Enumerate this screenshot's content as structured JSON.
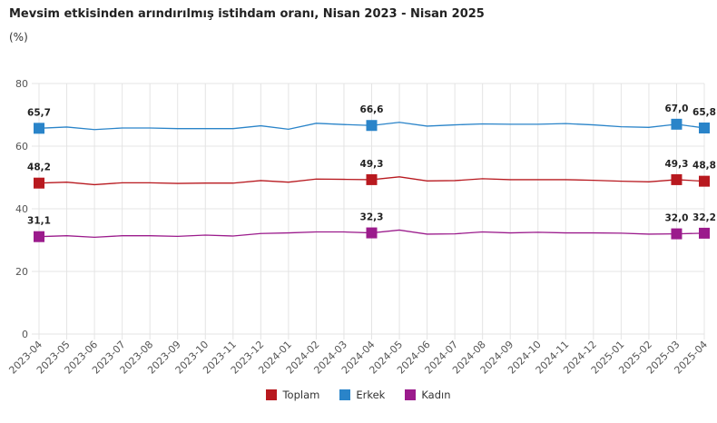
{
  "chart_data": {
    "type": "line",
    "title": "Mevsim etkisinden arındırılmış istihdam oranı, Nisan 2023 - Nisan 2025",
    "subtitle": "(%)",
    "ylim": [
      0,
      80
    ],
    "yticks": [
      0,
      20,
      40,
      60,
      80
    ],
    "grid": true,
    "legend_position": "bottom",
    "categories": [
      "2023-04",
      "2023-05",
      "2023-06",
      "2023-07",
      "2023-08",
      "2023-09",
      "2023-10",
      "2023-11",
      "2023-12",
      "2024-01",
      "2024-02",
      "2024-03",
      "2024-04",
      "2024-05",
      "2024-06",
      "2024-07",
      "2024-08",
      "2024-09",
      "2024-10",
      "2024-11",
      "2024-12",
      "2025-01",
      "2025-02",
      "2025-03",
      "2025-04"
    ],
    "labeled_points": [
      0,
      12,
      23,
      24
    ],
    "series": [
      {
        "name": "Toplam",
        "color": "#b8191f",
        "values": [
          48.2,
          48.5,
          47.7,
          48.3,
          48.3,
          48.1,
          48.2,
          48.2,
          49.0,
          48.5,
          49.5,
          49.4,
          49.3,
          50.2,
          48.9,
          49.0,
          49.6,
          49.3,
          49.3,
          49.3,
          49.1,
          48.8,
          48.6,
          49.3,
          48.8
        ],
        "labels": [
          "48,2",
          "49,3",
          "49,3",
          "48,8"
        ]
      },
      {
        "name": "Erkek",
        "color": "#2a84c9",
        "values": [
          65.7,
          66.1,
          65.3,
          65.8,
          65.8,
          65.6,
          65.6,
          65.6,
          66.5,
          65.4,
          67.3,
          66.9,
          66.6,
          67.6,
          66.4,
          66.8,
          67.1,
          67.0,
          67.0,
          67.2,
          66.8,
          66.2,
          66.0,
          67.0,
          65.8
        ],
        "labels": [
          "65,7",
          "66,6",
          "67,0",
          "65,8"
        ]
      },
      {
        "name": "Kadın",
        "color": "#9b1b8c",
        "values": [
          31.1,
          31.4,
          30.9,
          31.4,
          31.4,
          31.2,
          31.6,
          31.3,
          32.1,
          32.3,
          32.6,
          32.6,
          32.3,
          33.2,
          31.9,
          32.0,
          32.6,
          32.3,
          32.5,
          32.3,
          32.3,
          32.2,
          31.9,
          32.0,
          32.2
        ],
        "labels": [
          "31,1",
          "32,3",
          "32,0",
          "32,2"
        ]
      }
    ]
  }
}
